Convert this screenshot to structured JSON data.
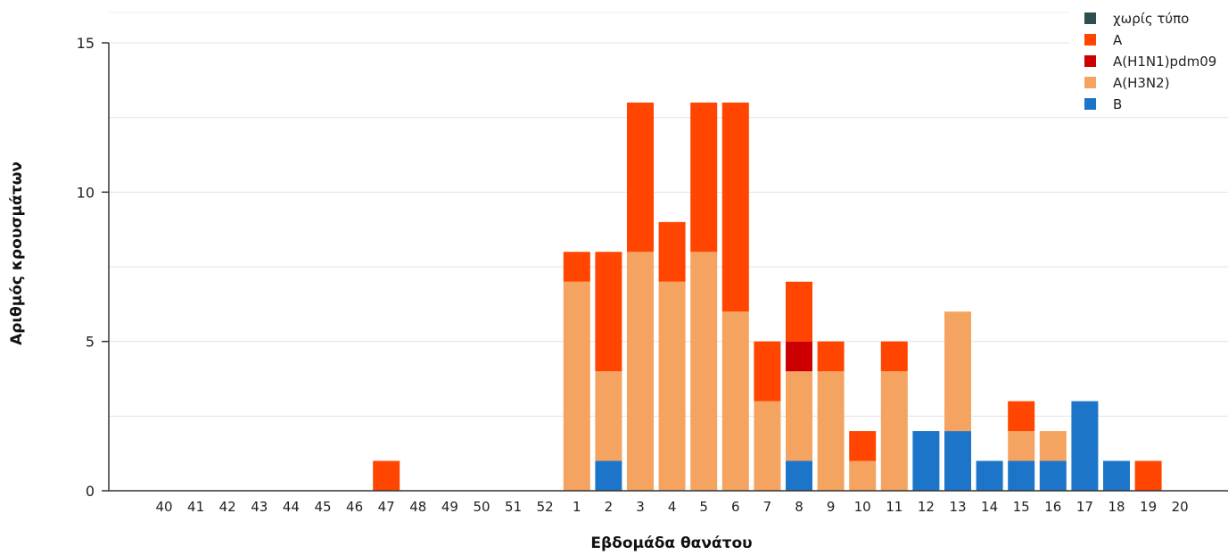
{
  "chart_data": {
    "type": "bar",
    "stacked": true,
    "title": "",
    "xlabel": "Εβδομάδα θανάτου",
    "ylabel": "Αριθμός κρουσμάτων",
    "ylim": [
      0,
      15
    ],
    "yticks": [
      0,
      5,
      10,
      15
    ],
    "grid": true,
    "legend_position": "top-right",
    "categories": [
      "40",
      "41",
      "42",
      "43",
      "44",
      "45",
      "46",
      "47",
      "48",
      "49",
      "50",
      "51",
      "52",
      "1",
      "2",
      "3",
      "4",
      "5",
      "6",
      "7",
      "8",
      "9",
      "10",
      "11",
      "12",
      "13",
      "14",
      "15",
      "16",
      "17",
      "18",
      "19",
      "20"
    ],
    "series": [
      {
        "name": "χωρίς τύπο",
        "color": "#2f4f4f",
        "values": [
          0,
          0,
          0,
          0,
          0,
          0,
          0,
          0,
          0,
          0,
          0,
          0,
          0,
          0,
          0,
          0,
          0,
          0,
          0,
          0,
          0,
          0,
          0,
          0,
          0,
          0,
          0,
          0,
          0,
          0,
          0,
          0,
          0
        ]
      },
      {
        "name": "A",
        "color": "#ff4500",
        "values": [
          0,
          0,
          0,
          0,
          0,
          0,
          0,
          1,
          0,
          0,
          0,
          0,
          0,
          1,
          4,
          5,
          2,
          5,
          7,
          2,
          2,
          1,
          1,
          1,
          0,
          0,
          0,
          1,
          0,
          0,
          0,
          1,
          0
        ]
      },
      {
        "name": "A(H1N1)pdm09",
        "color": "#cc0000",
        "values": [
          0,
          0,
          0,
          0,
          0,
          0,
          0,
          0,
          0,
          0,
          0,
          0,
          0,
          0,
          0,
          0,
          0,
          0,
          0,
          0,
          1,
          0,
          0,
          0,
          0,
          0,
          0,
          0,
          0,
          0,
          0,
          0,
          0
        ]
      },
      {
        "name": "A(H3N2)",
        "color": "#f4a460",
        "values": [
          0,
          0,
          0,
          0,
          0,
          0,
          0,
          0,
          0,
          0,
          0,
          0,
          0,
          7,
          3,
          8,
          7,
          8,
          6,
          3,
          3,
          4,
          1,
          4,
          0,
          4,
          0,
          1,
          1,
          0,
          0,
          0,
          0
        ]
      },
      {
        "name": "B",
        "color": "#1c75c8",
        "values": [
          0,
          0,
          0,
          0,
          0,
          0,
          0,
          0,
          0,
          0,
          0,
          0,
          0,
          0,
          1,
          0,
          0,
          0,
          0,
          0,
          1,
          0,
          0,
          0,
          2,
          2,
          1,
          1,
          1,
          3,
          1,
          0,
          0
        ]
      }
    ],
    "stack_order": [
      "B",
      "A(H3N2)",
      "A(H1N1)pdm09",
      "A",
      "χωρίς τύπο"
    ]
  }
}
